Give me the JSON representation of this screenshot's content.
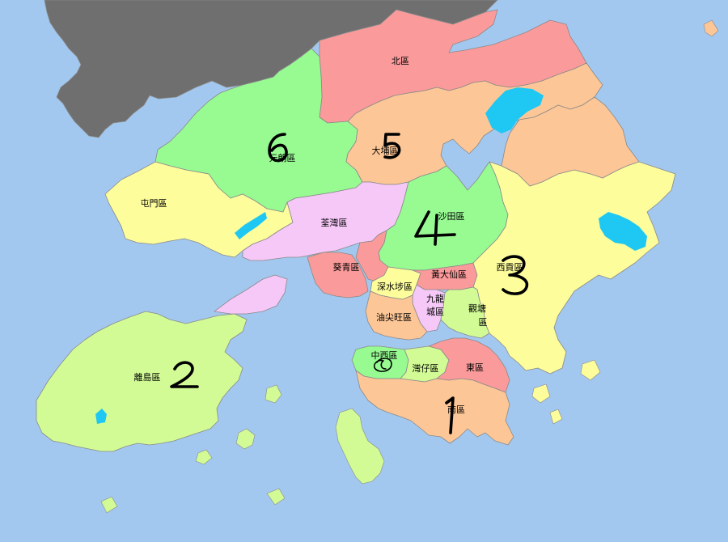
{
  "colors": {
    "sea": "#a3c8ef",
    "mainland_china": "#6f6f6f",
    "green": "#97fb92",
    "salmon": "#fb9a9a",
    "peach": "#fdc696",
    "yellow": "#fdfd9c",
    "pink": "#f6c8f8",
    "lime": "#d2fb96",
    "reservoir": "#1ec8f2",
    "annotation": "#000000"
  },
  "districts": [
    {
      "id": "north",
      "label": "北區",
      "color": "salmon"
    },
    {
      "id": "yuen-long",
      "label": "元朗區",
      "color": "green"
    },
    {
      "id": "tai-po",
      "label": "大埔區",
      "color": "peach"
    },
    {
      "id": "tuen-mun",
      "label": "屯門區",
      "color": "yellow"
    },
    {
      "id": "tsuen-wan",
      "label": "荃灣區",
      "color": "pink"
    },
    {
      "id": "sha-tin",
      "label": "沙田區",
      "color": "green"
    },
    {
      "id": "kwai-tsing",
      "label": "葵青區",
      "color": "salmon"
    },
    {
      "id": "wong-tai-sin",
      "label": "黃大仙區",
      "color": "salmon"
    },
    {
      "id": "sai-kung",
      "label": "西貢區",
      "color": "yellow"
    },
    {
      "id": "sham-shui-po",
      "label": "深水埗區",
      "color": "yellow"
    },
    {
      "id": "kowloon-city",
      "label": "九龍城區",
      "color": "pink"
    },
    {
      "id": "kwun-tong",
      "label": "觀塘區",
      "color": "lime"
    },
    {
      "id": "yau-tsim-mong",
      "label": "油尖旺區",
      "color": "peach"
    },
    {
      "id": "central-western",
      "label": "中西區",
      "color": "green"
    },
    {
      "id": "wan-chai",
      "label": "灣仔區",
      "color": "lime"
    },
    {
      "id": "eastern",
      "label": "東區",
      "color": "salmon"
    },
    {
      "id": "southern",
      "label": "南區",
      "color": "peach"
    },
    {
      "id": "islands",
      "label": "離島區",
      "color": "lime"
    }
  ],
  "annotations": [
    "1",
    "2",
    "3",
    "4",
    "5",
    "6"
  ]
}
